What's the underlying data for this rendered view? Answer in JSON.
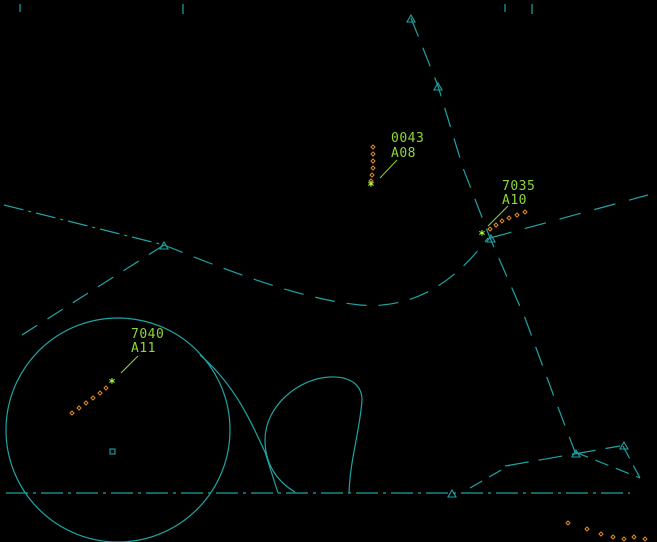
{
  "colors": {
    "background": "#000000",
    "map_lines": "#1fa3a3",
    "target_symbol": "#a8ff3e",
    "data_tag": "#8ed63a",
    "history_trail": "#e08a2a",
    "fix_symbol": "#1fa3a3"
  },
  "icons": {
    "fix": "triangle-icon",
    "target": "asterisk-icon",
    "history": "diamond-icon",
    "reference_point": "square-icon"
  },
  "targets": [
    {
      "id": "t-0043",
      "beacon_code": "0043",
      "altitude": "A08"
    },
    {
      "id": "t-7035",
      "beacon_code": "7035",
      "altitude": "A10"
    },
    {
      "id": "t-7040",
      "beacon_code": "7040",
      "altitude": "A11"
    }
  ]
}
